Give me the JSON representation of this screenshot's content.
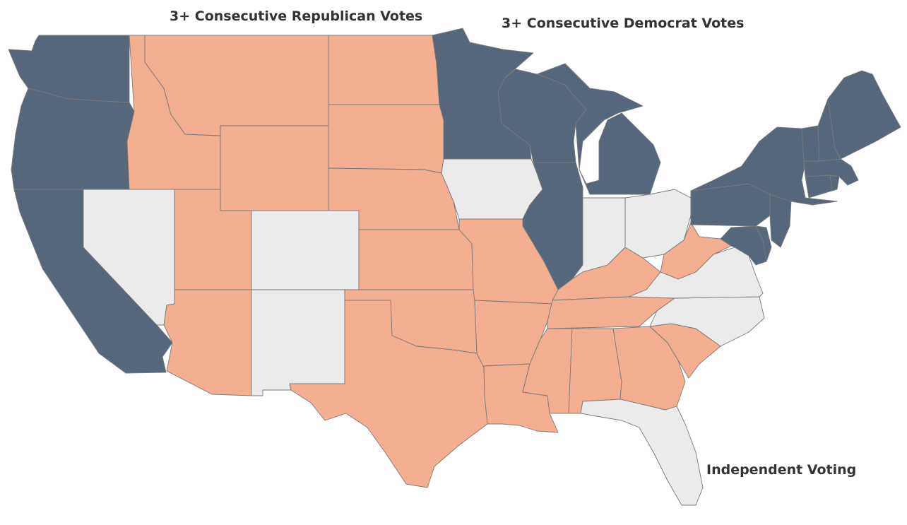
{
  "labels": {
    "republican": "3+ Consecutive Republican Votes",
    "democrat": "3+ Consecutive Democrat Votes",
    "independent": "Independent Voting"
  },
  "colors": {
    "republican": "#f4ae90",
    "democrat": "#56667b",
    "independent": "#ebebeb",
    "border": "#7a7a7a",
    "text": "#333333"
  },
  "categories": {
    "republican": [
      "ID",
      "MT",
      "WY",
      "UT",
      "AZ",
      "ND",
      "SD",
      "NE",
      "KS",
      "OK",
      "TX",
      "MO",
      "AR",
      "LA",
      "MS",
      "AL",
      "GA",
      "SC",
      "TN",
      "KY",
      "WV"
    ],
    "democrat": [
      "WA",
      "OR",
      "CA",
      "MN",
      "WI",
      "IL",
      "MI",
      "NY",
      "PA",
      "NJ",
      "DE",
      "MD",
      "CT",
      "RI",
      "MA",
      "VT",
      "NH",
      "ME"
    ],
    "independent": [
      "NV",
      "CO",
      "NM",
      "IA",
      "IN",
      "OH",
      "VA",
      "NC",
      "FL"
    ]
  }
}
